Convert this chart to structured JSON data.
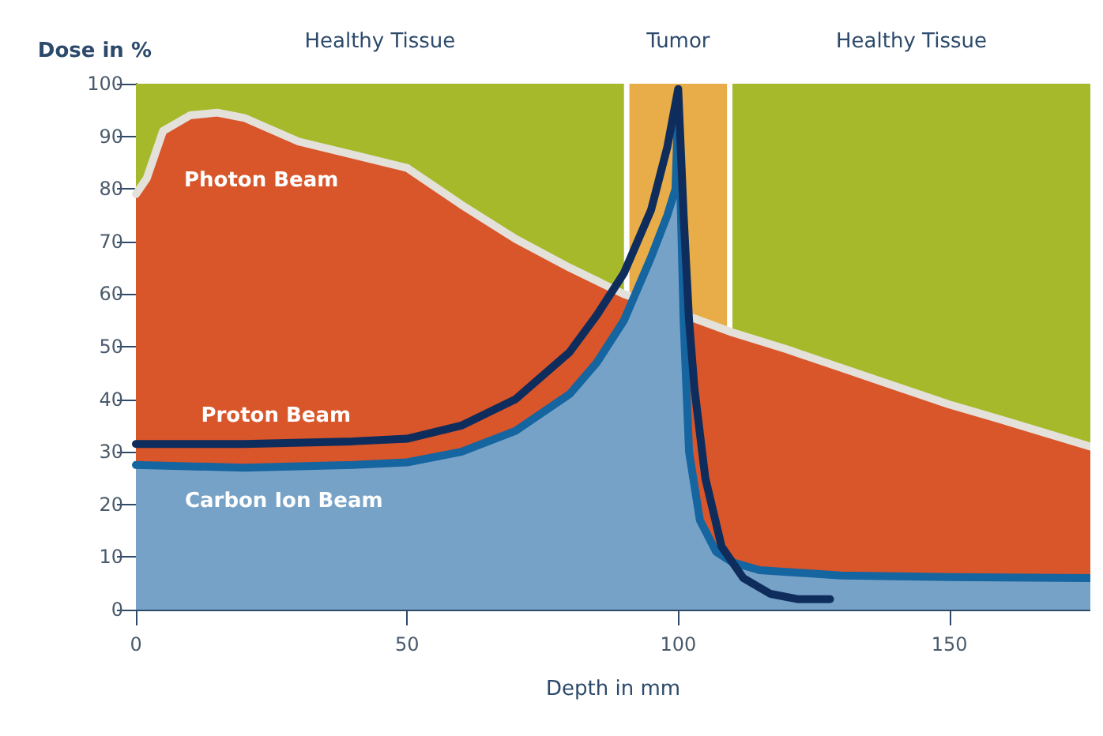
{
  "chart_data": {
    "type": "line",
    "xlabel": "Depth in mm",
    "ylabel": "Dose in %",
    "xlim": [
      0,
      176
    ],
    "xticks": [
      0,
      50,
      100,
      150
    ],
    "ylim": [
      0,
      100
    ],
    "yticks": [
      0,
      10,
      20,
      30,
      40,
      50,
      60,
      70,
      80,
      90,
      100
    ],
    "grid": false,
    "legend": false,
    "marker": "none",
    "line_style": "solid",
    "bands": [
      {
        "axis": "x",
        "from": 0,
        "to": 90,
        "label": "Healthy Tissue",
        "color": "#a6b92a"
      },
      {
        "axis": "x",
        "from": 91,
        "to": 109,
        "label": "Tumor",
        "color": "#e8ad48"
      },
      {
        "axis": "x",
        "from": 110,
        "to": 176,
        "label": "Healthy Tissue",
        "color": "#a6b92a"
      }
    ],
    "series": [
      {
        "name": "Photon Beam",
        "type": "area",
        "color": "#d9552a",
        "x": [
          0,
          2,
          5,
          10,
          15,
          20,
          30,
          40,
          50,
          60,
          70,
          80,
          90,
          100,
          110,
          120,
          130,
          140,
          150,
          160,
          176
        ],
        "values": [
          79,
          82,
          91,
          94,
          94.5,
          93.5,
          89,
          86.5,
          84,
          77,
          70.5,
          65,
          60,
          56.5,
          52.7,
          49.5,
          46,
          42.5,
          39,
          36,
          31
        ]
      },
      {
        "name": "Carbon Ion Beam",
        "type": "area",
        "color": "#1565a0",
        "x": [
          0,
          20,
          40,
          50,
          60,
          70,
          80,
          85,
          90,
          95,
          98,
          99.5,
          100,
          101,
          102,
          104,
          107,
          110,
          115,
          130,
          150,
          176
        ],
        "values": [
          27.5,
          27,
          27.5,
          28,
          30,
          34,
          41,
          47,
          55,
          67,
          75,
          80,
          96,
          55,
          30,
          17,
          11,
          9,
          7.5,
          6.5,
          6.2,
          6
        ]
      },
      {
        "name": "Proton Beam",
        "type": "line",
        "color": "#0f2d5c",
        "x": [
          0,
          20,
          40,
          50,
          60,
          70,
          80,
          85,
          90,
          95,
          98,
          100,
          101,
          102,
          103,
          105,
          108,
          112,
          117,
          122,
          128
        ],
        "values": [
          31.5,
          31.5,
          32,
          32.5,
          35,
          40,
          49,
          56,
          64,
          76,
          88,
          99,
          75,
          55,
          42,
          25,
          12,
          6,
          3,
          2,
          2
        ]
      }
    ]
  }
}
